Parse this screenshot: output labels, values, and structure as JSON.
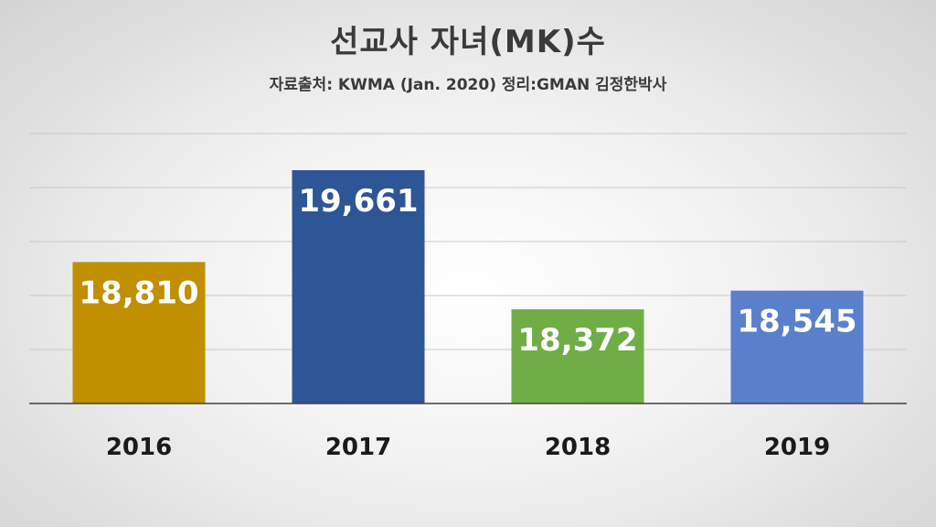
{
  "chart_data": {
    "type": "bar",
    "title": "선교사 자녀(MK)수",
    "subtitle": "자료출처: KWMA (Jan. 2020) 정리:GMAN 김정한박사",
    "categories": [
      "2016",
      "2017",
      "2018",
      "2019"
    ],
    "values": [
      18810,
      19661,
      18372,
      18545
    ],
    "value_labels": [
      "18,810",
      "19,661",
      "18,372",
      "18,545"
    ],
    "colors": [
      "#C09000",
      "#2E5596",
      "#70AD47",
      "#5A80CC"
    ],
    "ylim": [
      17500,
      20000
    ],
    "grid": true,
    "legend": "none"
  }
}
